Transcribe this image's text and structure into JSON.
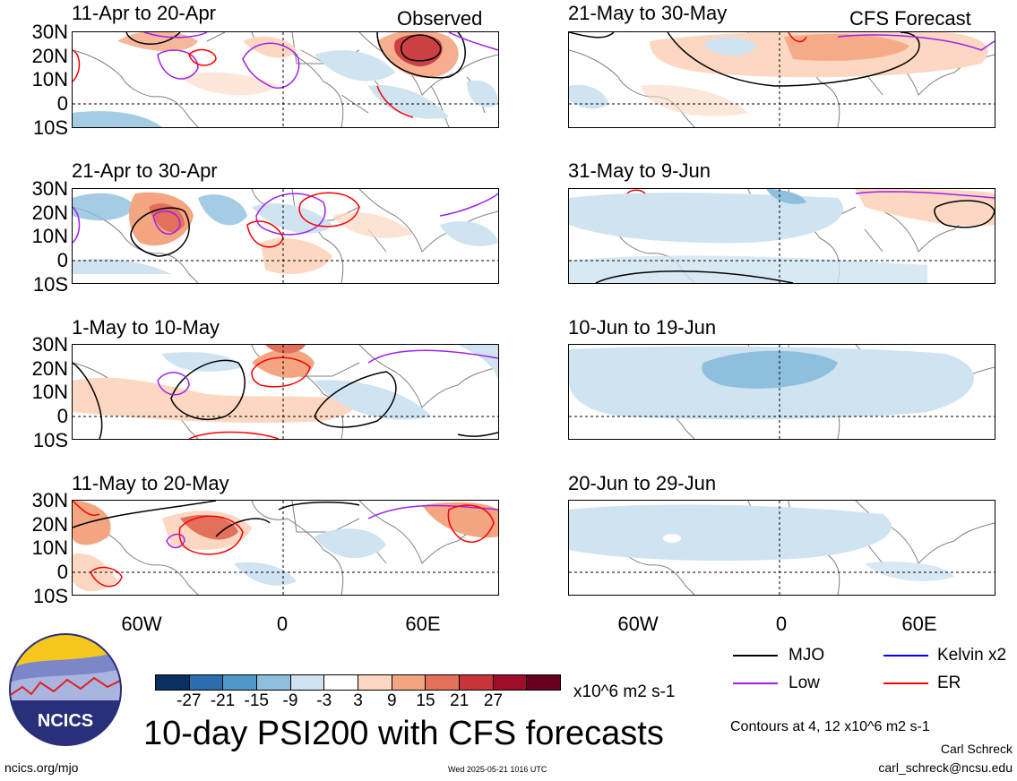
{
  "header": {
    "observed_label": "Observed",
    "forecast_label": "CFS Forecast"
  },
  "observed_panels": [
    {
      "title": "11-Apr to 20-Apr"
    },
    {
      "title": "21-Apr to 30-Apr"
    },
    {
      "title": "1-May to 10-May"
    },
    {
      "title": "11-May to 20-May"
    }
  ],
  "forecast_panels": [
    {
      "title": "21-May to 30-May"
    },
    {
      "title": "31-May to 9-Jun"
    },
    {
      "title": "10-Jun to 19-Jun"
    },
    {
      "title": "20-Jun to 29-Jun"
    }
  ],
  "lat_labels": [
    "30N",
    "20N",
    "10N",
    "0",
    "10S"
  ],
  "lon_labels": [
    "60W",
    "0",
    "60E"
  ],
  "colorbar": {
    "colors": [
      "#083060",
      "#2a6eb0",
      "#4f97c9",
      "#8fbfde",
      "#cfe3f1",
      "#ffffff",
      "#fcd7c2",
      "#f4a582",
      "#e2705a",
      "#c7343a",
      "#a00d2a",
      "#67001f"
    ],
    "labels": [
      "-27",
      "-21",
      "-15",
      "-9",
      "-3",
      "3",
      "9",
      "15",
      "21",
      "27"
    ],
    "units": "x10^6 m2 s-1"
  },
  "legend": [
    {
      "label": "MJO",
      "color": "#000000"
    },
    {
      "label": "Kelvin x2",
      "color": "#0000ff"
    },
    {
      "label": "Low",
      "color": "#a020f0"
    },
    {
      "label": "ER",
      "color": "#ff0000"
    }
  ],
  "contour_note": "Contours at 4, 12 x10^6 m2 s-1",
  "main_title": "10-day PSI200 with CFS forecasts",
  "logo_text": "NCICS",
  "website": "ncics.org/mjo",
  "timestamp": "Wed 2025-05-21 1016 UTC",
  "author": "Carl Schreck",
  "email": "carl_schreck@ncsu.edu"
}
